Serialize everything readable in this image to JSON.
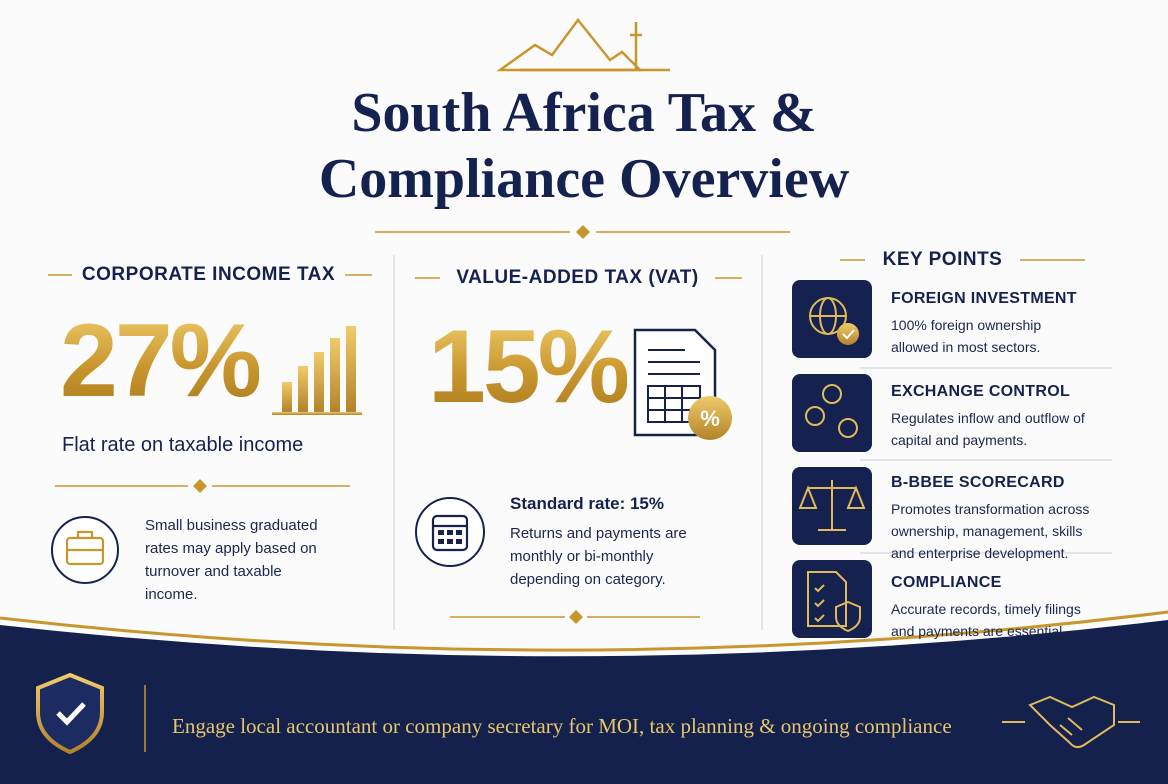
{
  "header": {
    "title_lines": [
      "South Africa Tax &",
      "Compliance Overview"
    ]
  },
  "corporate_tax": {
    "heading": "CORPORATE INCOME TAX",
    "rate": "27%",
    "caption": "Flat rate on taxable income",
    "note": "Small business graduated rates may apply based on turnover and taxable income."
  },
  "vat": {
    "heading": "VALUE-ADDED TAX (VAT)",
    "rate": "15%",
    "standard": "Standard rate: 15%",
    "note": "Returns and payments are monthly or bi-monthly depending on category."
  },
  "key_points": {
    "heading": "KEY POINTS",
    "items": [
      {
        "title": "FOREIGN INVESTMENT",
        "text": "100% foreign ownership allowed in most sectors."
      },
      {
        "title": "EXCHANGE CONTROL",
        "text": "Regulates inflow and outflow of capital and payments."
      },
      {
        "title": "B-BBEE SCORECARD",
        "text": "Promotes transformation across ownership, management, skills and enterprise development."
      },
      {
        "title": "COMPLIANCE",
        "text": "Accurate records, timely filings and payments are essential."
      }
    ]
  },
  "footer": {
    "text": "Engage local accountant or company secretary for MOI, tax planning & ongoing compliance"
  }
}
